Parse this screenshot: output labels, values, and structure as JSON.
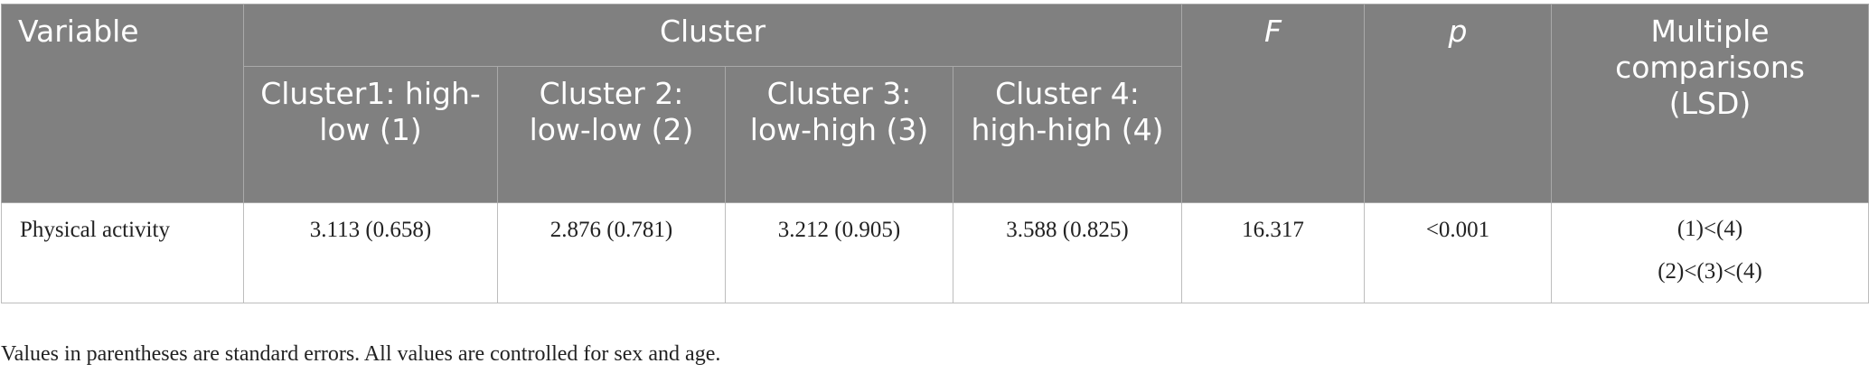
{
  "table": {
    "header": {
      "variable": "Variable",
      "cluster": "Cluster",
      "subclusters": [
        "Cluster1: high-low (1)",
        "Cluster 2: low-low (2)",
        "Cluster 3: low-high (3)",
        "Cluster 4: high-high (4)"
      ],
      "f": "F",
      "p": "p",
      "comparisons": "Multiple comparisons (LSD)"
    },
    "rows": [
      {
        "variable": "Physical activity",
        "values": [
          "3.113 (0.658)",
          "2.876 (0.781)",
          "3.212 (0.905)",
          "3.588 (0.825)"
        ],
        "f": "16.317",
        "p": "<0.001",
        "comparisons": [
          "(1)<(4)",
          "(2)<(3)<(4)"
        ]
      }
    ]
  },
  "footnote": "Values in parentheses are standard errors. All values are controlled for sex and age."
}
